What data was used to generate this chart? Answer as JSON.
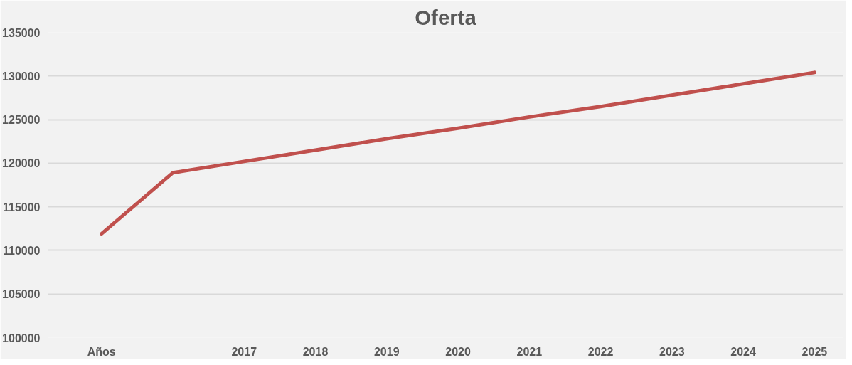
{
  "chart_data": {
    "type": "line",
    "title": "Oferta",
    "categories": [
      "Años",
      null,
      "2017",
      "2018",
      "2019",
      "2020",
      "2021",
      "2022",
      "2023",
      "2024",
      "2025"
    ],
    "series": [
      {
        "color": "#c0504d",
        "values": [
          111900,
          118900,
          120200,
          121500,
          122800,
          124000,
          125300,
          126500,
          127800,
          129100,
          130400
        ]
      }
    ],
    "ylim": [
      100000,
      135000
    ],
    "yticks": [
      100000,
      105000,
      110000,
      115000,
      120000,
      125000,
      130000,
      135000
    ],
    "grid": "y",
    "marker": "none",
    "line_style": "solid"
  }
}
